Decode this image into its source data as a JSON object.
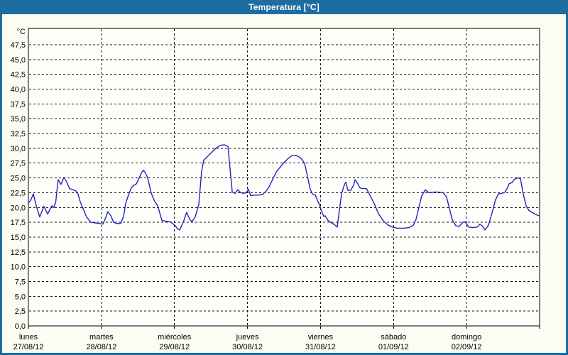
{
  "header": {
    "title": "Temperatura [°C]"
  },
  "colors": {
    "frame": "#1d6da1",
    "titlebar_bg": "#1d6da1",
    "title_text": "#ffffff",
    "panel_bg": "#fbfdf2",
    "plot_bg": "#fefffb",
    "axis": "#000000",
    "grid": "#111111",
    "label_text": "#000000",
    "line": "#2323bb"
  },
  "chart_data": {
    "type": "line",
    "title": "Temperatura [°C]",
    "y_axis": {
      "unit": "°C",
      "min": 0,
      "max": 47.5,
      "tick_step": 2.5,
      "tick_labels": [
        "0,0",
        "2,5",
        "5,0",
        "7,5",
        "10,0",
        "12,5",
        "15,0",
        "17,5",
        "20,0",
        "22,5",
        "25,0",
        "27,5",
        "30,0",
        "32,5",
        "35,0",
        "37,5",
        "40,0",
        "42,5",
        "45,0",
        "47,5"
      ]
    },
    "x_axis": {
      "days": [
        {
          "name": "lunes",
          "date": "27/08/12"
        },
        {
          "name": "martes",
          "date": "28/08/12"
        },
        {
          "name": "miércoles",
          "date": "29/08/12"
        },
        {
          "name": "jueves",
          "date": "30/08/12"
        },
        {
          "name": "viernes",
          "date": "31/08/12"
        },
        {
          "name": "sábado",
          "date": "01/09/12"
        },
        {
          "name": "domingo",
          "date": "02/09/12"
        }
      ],
      "hours_total": 168
    },
    "grid": {
      "horizontal": "dashed",
      "vertical": "dashed at day boundaries",
      "legend": "none"
    },
    "series": [
      {
        "name": "Temperatura",
        "color": "#2323bb",
        "x_unit": "hours from 27/08/12 00:00",
        "points": [
          [
            0,
            20.7
          ],
          [
            0.9,
            21.4
          ],
          [
            1.6,
            22.3
          ],
          [
            2.6,
            20.3
          ],
          [
            3.7,
            18.4
          ],
          [
            5.1,
            20.2
          ],
          [
            6.3,
            18.9
          ],
          [
            7.7,
            20.3
          ],
          [
            8.4,
            20.0
          ],
          [
            9.0,
            21.0
          ],
          [
            9.4,
            23.0
          ],
          [
            9.8,
            24.7
          ],
          [
            10.7,
            23.9
          ],
          [
            11.7,
            25.1
          ],
          [
            12.6,
            24.3
          ],
          [
            13.5,
            23.2
          ],
          [
            14.7,
            23.0
          ],
          [
            15.6,
            22.8
          ],
          [
            16.3,
            22.3
          ],
          [
            17.0,
            21.0
          ],
          [
            18.0,
            19.8
          ],
          [
            19.1,
            18.4
          ],
          [
            20.5,
            17.5
          ],
          [
            21.9,
            17.4
          ],
          [
            23.3,
            17.3
          ],
          [
            24.5,
            17.2
          ],
          [
            25.2,
            18.0
          ],
          [
            26.1,
            19.3
          ],
          [
            27.1,
            18.6
          ],
          [
            28.0,
            17.5
          ],
          [
            29.2,
            17.3
          ],
          [
            30.3,
            17.3
          ],
          [
            31.3,
            18.5
          ],
          [
            32.0,
            20.8
          ],
          [
            33.1,
            22.4
          ],
          [
            33.8,
            23.3
          ],
          [
            34.5,
            23.7
          ],
          [
            35.5,
            24.0
          ],
          [
            36.4,
            25.0
          ],
          [
            37.1,
            25.8
          ],
          [
            37.8,
            26.3
          ],
          [
            38.5,
            25.8
          ],
          [
            39.2,
            25.0
          ],
          [
            40.4,
            22.4
          ],
          [
            41.5,
            21.0
          ],
          [
            42.5,
            20.3
          ],
          [
            43.9,
            17.8
          ],
          [
            45.0,
            17.7
          ],
          [
            46.7,
            17.6
          ],
          [
            48.3,
            16.9
          ],
          [
            49.0,
            16.4
          ],
          [
            49.7,
            16.2
          ],
          [
            50.9,
            17.5
          ],
          [
            52.0,
            19.2
          ],
          [
            53.0,
            18.0
          ],
          [
            53.7,
            17.6
          ],
          [
            54.8,
            18.4
          ],
          [
            56.0,
            20.5
          ],
          [
            56.9,
            26.0
          ],
          [
            57.6,
            28.0
          ],
          [
            58.8,
            28.6
          ],
          [
            60.2,
            29.3
          ],
          [
            61.6,
            30.0
          ],
          [
            63.0,
            30.5
          ],
          [
            64.4,
            30.6
          ],
          [
            65.6,
            30.3
          ],
          [
            67.0,
            22.6
          ],
          [
            67.9,
            22.4
          ],
          [
            68.8,
            23.0
          ],
          [
            69.8,
            22.5
          ],
          [
            70.7,
            22.4
          ],
          [
            71.6,
            22.5
          ],
          [
            72.3,
            23.1
          ],
          [
            73.0,
            22.0
          ],
          [
            74.2,
            22.1
          ],
          [
            75.6,
            22.1
          ],
          [
            77.0,
            22.2
          ],
          [
            78.2,
            22.8
          ],
          [
            79.1,
            23.5
          ],
          [
            80.5,
            25.0
          ],
          [
            81.7,
            26.2
          ],
          [
            82.4,
            26.6
          ],
          [
            84.0,
            27.6
          ],
          [
            85.6,
            28.4
          ],
          [
            86.8,
            28.8
          ],
          [
            88.0,
            28.8
          ],
          [
            89.1,
            28.5
          ],
          [
            89.8,
            28.2
          ],
          [
            90.8,
            27.4
          ],
          [
            91.5,
            25.8
          ],
          [
            92.6,
            23.1
          ],
          [
            93.3,
            22.3
          ],
          [
            94.3,
            22.1
          ],
          [
            95.0,
            21.2
          ],
          [
            95.7,
            20.5
          ],
          [
            96.4,
            19.3
          ],
          [
            97.1,
            18.5
          ],
          [
            97.5,
            18.6
          ],
          [
            98.5,
            17.8
          ],
          [
            99.6,
            17.4
          ],
          [
            100.6,
            17.1
          ],
          [
            101.5,
            16.7
          ],
          [
            102.2,
            19.5
          ],
          [
            102.9,
            22.3
          ],
          [
            103.8,
            23.8
          ],
          [
            104.3,
            24.3
          ],
          [
            105.0,
            22.9
          ],
          [
            105.9,
            22.9
          ],
          [
            106.9,
            23.8
          ],
          [
            107.3,
            24.7
          ],
          [
            108.0,
            24.2
          ],
          [
            109.0,
            23.3
          ],
          [
            110.1,
            23.2
          ],
          [
            111.1,
            23.2
          ],
          [
            112.0,
            22.3
          ],
          [
            113.6,
            20.7
          ],
          [
            115.0,
            19.0
          ],
          [
            116.7,
            17.7
          ],
          [
            118.3,
            17.0
          ],
          [
            119.7,
            16.7
          ],
          [
            121.3,
            16.5
          ],
          [
            123.2,
            16.5
          ],
          [
            125.1,
            16.6
          ],
          [
            126.5,
            17.0
          ],
          [
            127.4,
            18.0
          ],
          [
            128.3,
            20.0
          ],
          [
            129.3,
            22.0
          ],
          [
            130.4,
            23.0
          ],
          [
            131.6,
            22.5
          ],
          [
            133.2,
            22.6
          ],
          [
            134.9,
            22.6
          ],
          [
            136.3,
            22.5
          ],
          [
            137.4,
            21.8
          ],
          [
            138.4,
            19.8
          ],
          [
            139.3,
            17.9
          ],
          [
            140.5,
            16.9
          ],
          [
            141.6,
            16.8
          ],
          [
            142.8,
            17.5
          ],
          [
            143.5,
            17.6
          ],
          [
            144.7,
            16.7
          ],
          [
            146.1,
            16.6
          ],
          [
            147.5,
            16.7
          ],
          [
            148.4,
            17.2
          ],
          [
            149.3,
            16.8
          ],
          [
            150.0,
            16.2
          ],
          [
            151.2,
            17.0
          ],
          [
            152.6,
            19.5
          ],
          [
            153.5,
            21.3
          ],
          [
            154.5,
            22.3
          ],
          [
            155.6,
            22.4
          ],
          [
            156.6,
            22.6
          ],
          [
            157.3,
            23.2
          ],
          [
            158.0,
            24.0
          ],
          [
            158.9,
            24.2
          ],
          [
            159.8,
            24.8
          ],
          [
            160.8,
            25.0
          ],
          [
            161.7,
            24.9
          ],
          [
            162.6,
            22.3
          ],
          [
            163.6,
            20.3
          ],
          [
            164.5,
            19.5
          ],
          [
            165.4,
            19.2
          ],
          [
            166.4,
            18.9
          ],
          [
            167.3,
            18.7
          ],
          [
            168.0,
            18.6
          ]
        ]
      }
    ]
  }
}
